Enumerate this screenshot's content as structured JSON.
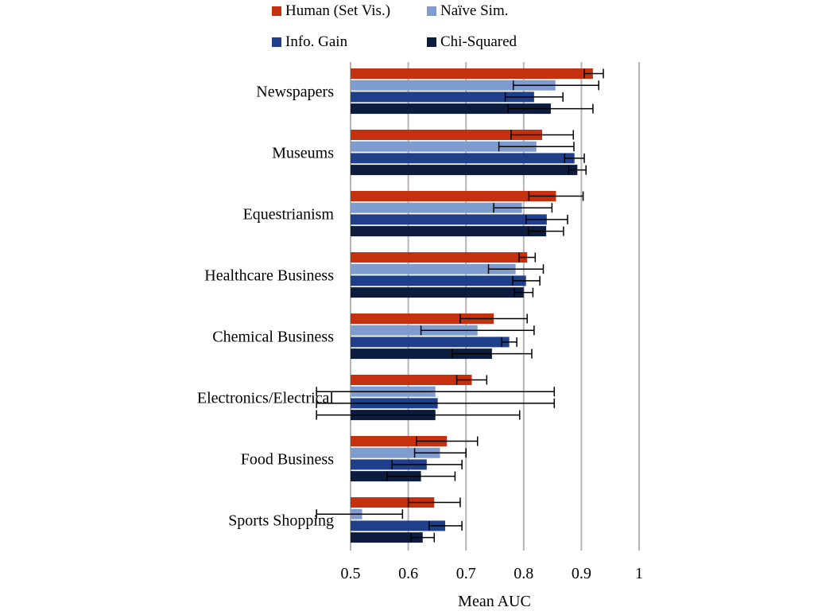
{
  "chart_data": {
    "type": "bar",
    "orientation": "horizontal",
    "xlabel": "Mean AUC",
    "ylabel": "",
    "xlim": [
      0.5,
      1.0
    ],
    "xticks": [
      "0.5",
      "0.6",
      "0.7",
      "0.8",
      "0.9",
      "1"
    ],
    "grid": true,
    "legend_position": "top",
    "categories": [
      "Newspapers",
      "Museums",
      "Equestrianism",
      "Healthcare Business",
      "Chemical Business",
      "Electronics/Electrical",
      "Food Business",
      "Sports Shopping"
    ],
    "series": [
      {
        "name": "Human (Set Vis.)",
        "color": "#c5310f",
        "values": [
          0.92,
          0.832,
          0.856,
          0.806,
          0.748,
          0.71,
          0.667,
          0.645
        ],
        "error_low": [
          0.905,
          0.778,
          0.809,
          0.792,
          0.69,
          0.684,
          0.614,
          0.6
        ],
        "error_high": [
          0.938,
          0.886,
          0.903,
          0.82,
          0.806,
          0.736,
          0.72,
          0.69
        ]
      },
      {
        "name": "Naïve Sim.",
        "color": "#7f9ccf",
        "values": [
          0.855,
          0.822,
          0.797,
          0.786,
          0.72,
          0.647,
          0.655,
          0.52
        ],
        "error_low": [
          0.782,
          0.757,
          0.748,
          0.739,
          0.622,
          0.441,
          0.611,
          0.441
        ],
        "error_high": [
          0.93,
          0.887,
          0.849,
          0.834,
          0.818,
          0.853,
          0.7,
          0.59
        ]
      },
      {
        "name": "Info. Gain",
        "color": "#1f3f8a",
        "values": [
          0.818,
          0.888,
          0.84,
          0.804,
          0.775,
          0.651,
          0.632,
          0.664
        ],
        "error_low": [
          0.768,
          0.871,
          0.804,
          0.781,
          0.762,
          0.441,
          0.572,
          0.636
        ],
        "error_high": [
          0.868,
          0.905,
          0.876,
          0.828,
          0.788,
          0.853,
          0.693,
          0.693
        ]
      },
      {
        "name": "Chi-Squared",
        "color": "#0c1c3f",
        "values": [
          0.847,
          0.893,
          0.839,
          0.8,
          0.745,
          0.647,
          0.622,
          0.625
        ],
        "error_low": [
          0.773,
          0.878,
          0.808,
          0.784,
          0.676,
          0.441,
          0.563,
          0.605
        ],
        "error_high": [
          0.92,
          0.908,
          0.869,
          0.816,
          0.814,
          0.793,
          0.681,
          0.645
        ]
      }
    ]
  }
}
